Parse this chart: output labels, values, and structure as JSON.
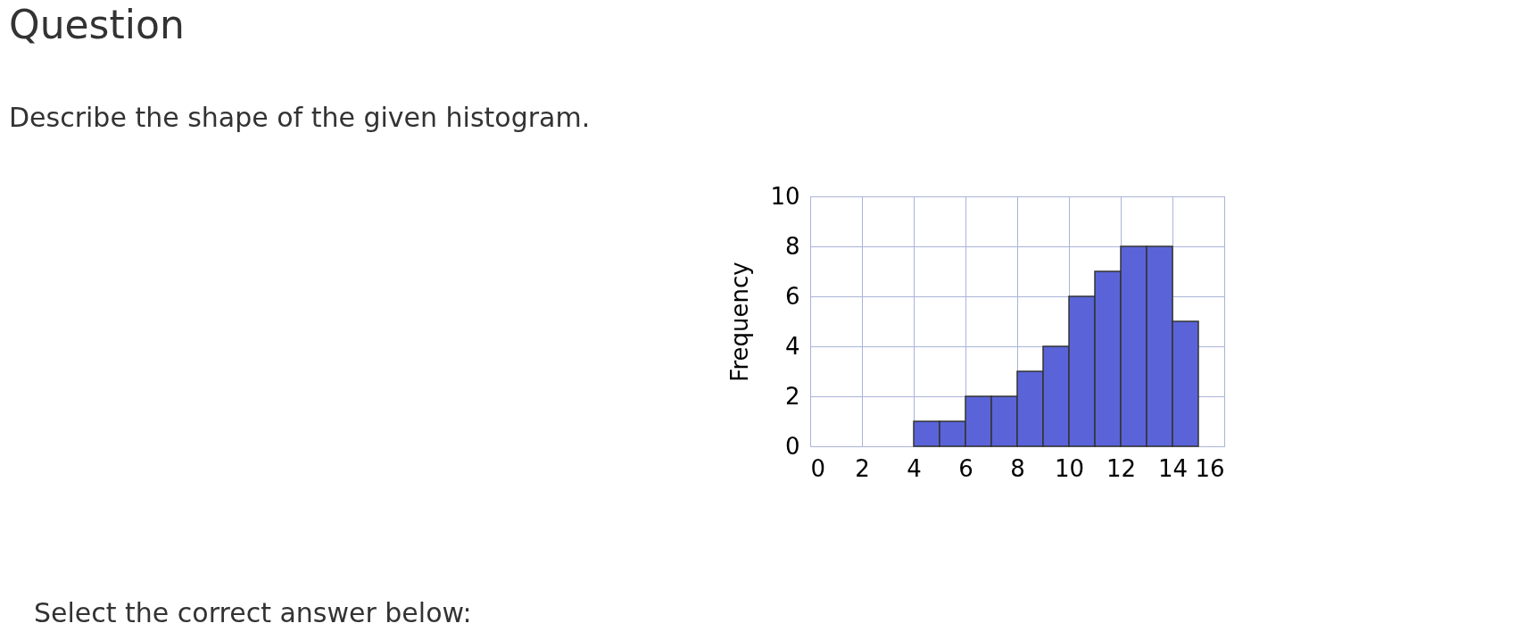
{
  "chart_data": {
    "type": "histogram",
    "title": "Question",
    "subtitle": "Describe the shape of the given histogram.",
    "ylabel": "Frequency",
    "annotations": [
      "Select the correct answer below:"
    ],
    "bins": [
      4,
      5,
      6,
      7,
      8,
      9,
      10,
      11,
      12,
      13,
      14,
      15
    ],
    "values": [
      1,
      1,
      2,
      2,
      3,
      4,
      6,
      7,
      8,
      8,
      5
    ],
    "color": "#5a64d8",
    "xlim": [
      0,
      16
    ],
    "xticks": [
      0,
      2,
      4,
      6,
      8,
      10,
      12,
      14,
      16
    ],
    "ylim": [
      0,
      10
    ],
    "yticks": [
      0,
      2,
      4,
      6,
      8,
      10
    ],
    "grid": true
  }
}
